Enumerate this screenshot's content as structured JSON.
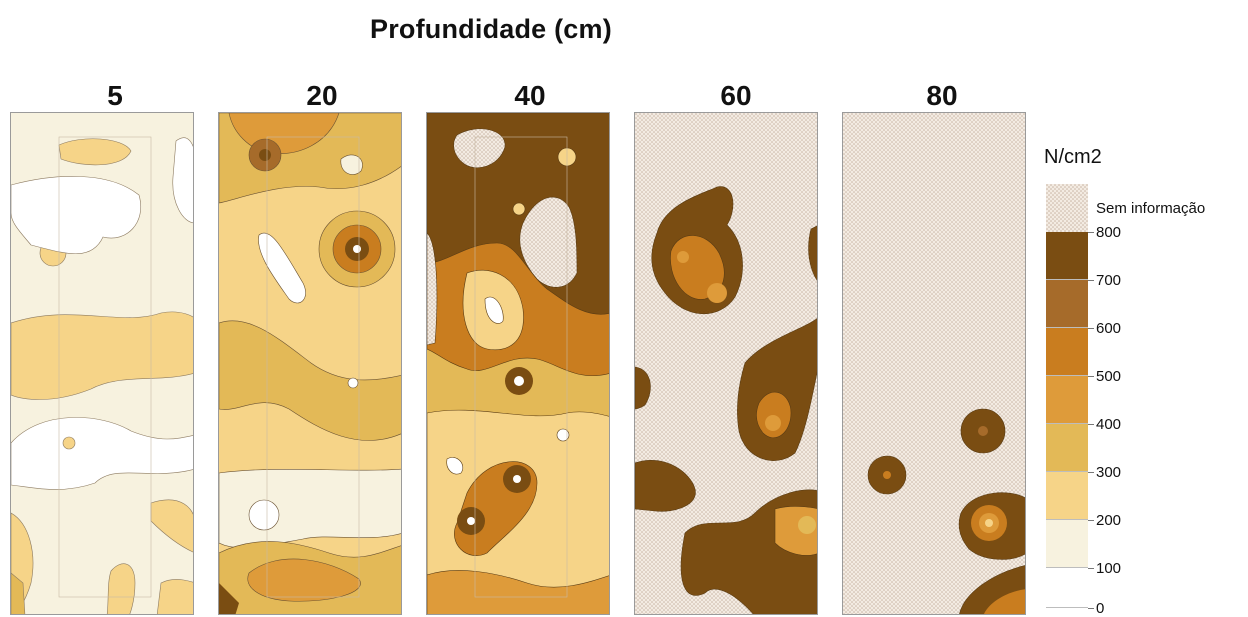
{
  "chart_data": {
    "type": "heatmap",
    "title": "Profundidade (cm)",
    "panels": [
      {
        "depth_label": "5"
      },
      {
        "depth_label": "20"
      },
      {
        "depth_label": "40"
      },
      {
        "depth_label": "60",
        "mostly_no_data": true
      },
      {
        "depth_label": "80",
        "mostly_no_data": true
      }
    ],
    "legend": {
      "title": "N/cm2",
      "no_data_label": "Sem informação",
      "tick_labels": [
        "800",
        "700",
        "600",
        "500",
        "400",
        "300",
        "200",
        "100",
        "0"
      ],
      "classes": [
        {
          "range": [
            700,
            800
          ],
          "color": "#7a4d12"
        },
        {
          "range": [
            600,
            700
          ],
          "color": "#a66b2a"
        },
        {
          "range": [
            500,
            600
          ],
          "color": "#c97d1f"
        },
        {
          "range": [
            400,
            500
          ],
          "color": "#de9b3a"
        },
        {
          "range": [
            300,
            400
          ],
          "color": "#e3b957"
        },
        {
          "range": [
            200,
            300
          ],
          "color": "#f6d488"
        },
        {
          "range": [
            100,
            200
          ],
          "color": "#f7f2df"
        },
        {
          "range": [
            0,
            100
          ],
          "color": "#ffffff"
        }
      ],
      "no_data_color": "#efe4d8"
    }
  }
}
